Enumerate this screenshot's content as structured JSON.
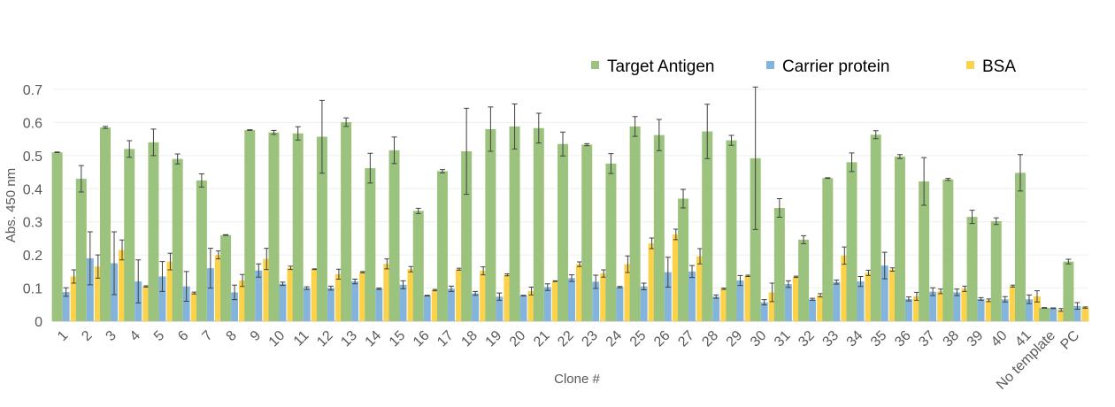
{
  "chart_data": {
    "type": "bar",
    "title": "",
    "xlabel": "Clone #",
    "ylabel": "Abs. 450 nm",
    "ylim": [
      0,
      0.7
    ],
    "yticks": [
      "0",
      "0.1",
      "0.2",
      "0.3",
      "0.4",
      "0.5",
      "0.6",
      "0.7"
    ],
    "grid": true,
    "legend_position": "top-right",
    "categories": [
      "1",
      "2",
      "3",
      "4",
      "5",
      "6",
      "7",
      "8",
      "9",
      "10",
      "11",
      "12",
      "13",
      "14",
      "15",
      "16",
      "17",
      "18",
      "19",
      "20",
      "21",
      "22",
      "23",
      "24",
      "25",
      "26",
      "27",
      "28",
      "29",
      "30",
      "31",
      "32",
      "33",
      "34",
      "35",
      "36",
      "37",
      "38",
      "39",
      "40",
      "41",
      "No template",
      "PC"
    ],
    "series": [
      {
        "name": "Target Antigen",
        "color": "#9bc37d",
        "values": [
          0.51,
          0.43,
          0.585,
          0.52,
          0.54,
          0.49,
          0.425,
          0.26,
          0.577,
          0.57,
          0.567,
          0.557,
          0.601,
          0.462,
          0.516,
          0.333,
          0.453,
          0.513,
          0.58,
          0.588,
          0.583,
          0.535,
          0.533,
          0.476,
          0.588,
          0.562,
          0.37,
          0.573,
          0.546,
          0.492,
          0.342,
          0.246,
          0.432,
          0.48,
          0.563,
          0.497,
          0.422,
          0.428,
          0.315,
          0.302,
          0.448,
          0.04,
          0.18
        ],
        "errors": [
          0.001,
          0.04,
          0.003,
          0.025,
          0.04,
          0.015,
          0.02,
          0.001,
          0.001,
          0.006,
          0.02,
          0.11,
          0.013,
          0.045,
          0.04,
          0.008,
          0.005,
          0.13,
          0.067,
          0.068,
          0.045,
          0.036,
          0.003,
          0.03,
          0.03,
          0.047,
          0.028,
          0.082,
          0.015,
          0.215,
          0.028,
          0.012,
          0.001,
          0.028,
          0.012,
          0.006,
          0.072,
          0.003,
          0.02,
          0.01,
          0.055,
          0.001,
          0.007
        ]
      },
      {
        "name": "Carrier protein",
        "color": "#84b4dc",
        "values": [
          0.088,
          0.19,
          0.175,
          0.12,
          0.135,
          0.105,
          0.16,
          0.087,
          0.153,
          0.113,
          0.1,
          0.1,
          0.12,
          0.098,
          0.11,
          0.077,
          0.098,
          0.084,
          0.074,
          0.077,
          0.103,
          0.13,
          0.119,
          0.103,
          0.105,
          0.148,
          0.15,
          0.074,
          0.123,
          0.057,
          0.112,
          0.066,
          0.118,
          0.12,
          0.168,
          0.067,
          0.089,
          0.087,
          0.067,
          0.066,
          0.066,
          0.039,
          0.046
        ],
        "errors": [
          0.013,
          0.08,
          0.095,
          0.065,
          0.045,
          0.045,
          0.06,
          0.022,
          0.02,
          0.005,
          0.004,
          0.006,
          0.007,
          0.002,
          0.012,
          0.001,
          0.008,
          0.006,
          0.011,
          0.001,
          0.01,
          0.01,
          0.02,
          0.002,
          0.01,
          0.045,
          0.018,
          0.005,
          0.015,
          0.008,
          0.01,
          0.003,
          0.006,
          0.015,
          0.04,
          0.006,
          0.012,
          0.01,
          0.004,
          0.008,
          0.013,
          0.001,
          0.01
        ]
      },
      {
        "name": "BSA",
        "color": "#fdd24b",
        "values": [
          0.135,
          0.165,
          0.215,
          0.105,
          0.18,
          0.085,
          0.2,
          0.123,
          0.188,
          0.161,
          0.157,
          0.142,
          0.148,
          0.173,
          0.157,
          0.094,
          0.157,
          0.152,
          0.14,
          0.091,
          0.121,
          0.172,
          0.144,
          0.172,
          0.235,
          0.262,
          0.196,
          0.098,
          0.137,
          0.087,
          0.134,
          0.078,
          0.198,
          0.146,
          0.156,
          0.075,
          0.09,
          0.098,
          0.063,
          0.106,
          0.075,
          0.034,
          0.041
        ],
        "errors": [
          0.02,
          0.035,
          0.03,
          0.002,
          0.025,
          0.003,
          0.012,
          0.018,
          0.032,
          0.005,
          0.001,
          0.015,
          0.002,
          0.015,
          0.008,
          0.002,
          0.003,
          0.012,
          0.003,
          0.012,
          0.001,
          0.007,
          0.011,
          0.025,
          0.016,
          0.016,
          0.023,
          0.002,
          0.002,
          0.028,
          0.002,
          0.005,
          0.026,
          0.008,
          0.005,
          0.012,
          0.007,
          0.008,
          0.004,
          0.003,
          0.017,
          0.004,
          0.002
        ]
      }
    ]
  }
}
